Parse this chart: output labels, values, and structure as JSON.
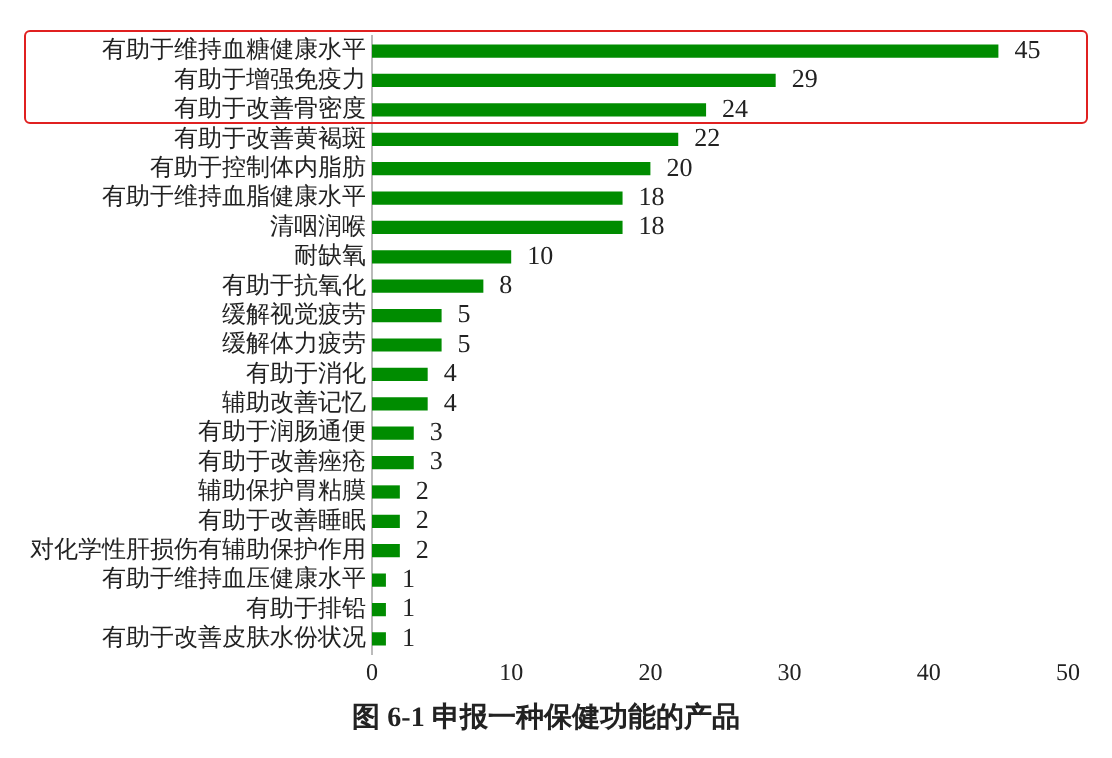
{
  "chart_data": {
    "type": "bar",
    "orientation": "horizontal",
    "title": "图 6-1 申报一种保健功能的产品",
    "categories": [
      "有助于维持血糖健康水平",
      "有助于增强免疫力",
      "有助于改善骨密度",
      "有助于改善黄褐斑",
      "有助于控制体内脂肪",
      "有助于维持血脂健康水平",
      "清咽润喉",
      "耐缺氧",
      "有助于抗氧化",
      "缓解视觉疲劳",
      "缓解体力疲劳",
      "有助于消化",
      "辅助改善记忆",
      "有助于润肠通便",
      "有助于改善痤疮",
      "辅助保护胃粘膜",
      "有助于改善睡眠",
      "对化学性肝损伤有辅助保护作用",
      "有助于维持血压健康水平",
      "有助于排铅",
      "有助于改善皮肤水份状况"
    ],
    "values": [
      45,
      29,
      24,
      22,
      20,
      18,
      18,
      10,
      8,
      5,
      5,
      4,
      4,
      3,
      3,
      2,
      2,
      2,
      1,
      1,
      1
    ],
    "color": "#008c00",
    "data_labels": true,
    "xlim": [
      0,
      50
    ],
    "xticks": [
      0,
      10,
      20,
      30,
      40,
      50
    ],
    "grid": false,
    "legend": false
  }
}
